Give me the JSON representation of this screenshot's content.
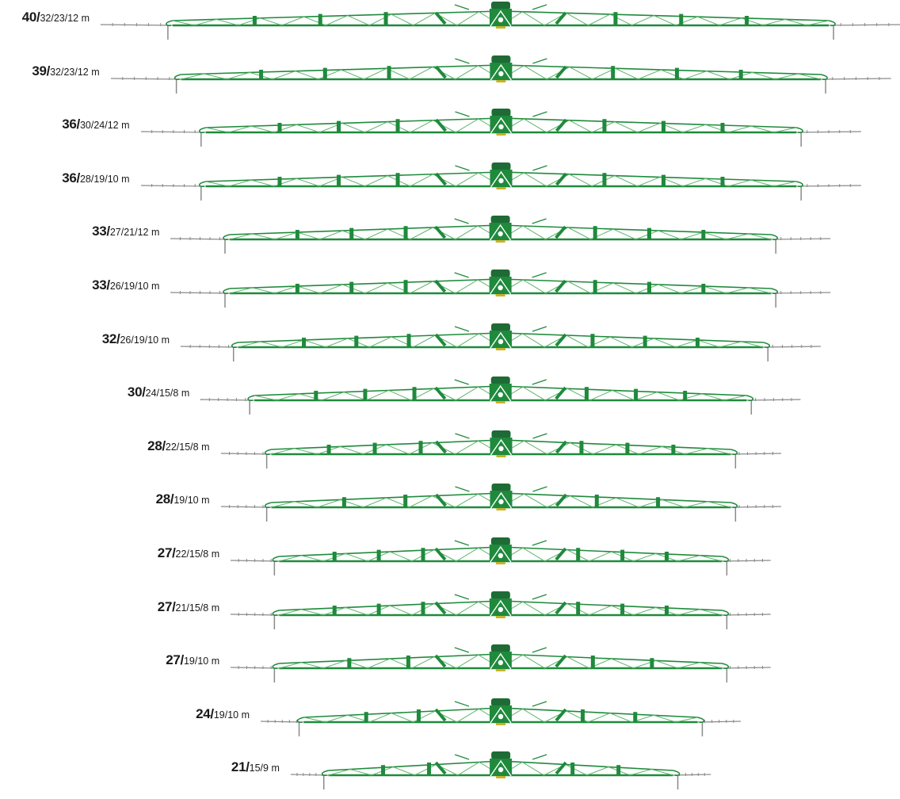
{
  "colors": {
    "boom_green": "#1f8a3c",
    "boom_light_green": "#5cb56a",
    "center_dark_green": "#1e6b35",
    "tip_grey": "#8a8a8a",
    "label_text": "#1a1a1a"
  },
  "booms": [
    {
      "main": "40/",
      "sub": "32/23/12 m",
      "sections": 3
    },
    {
      "main": "39/",
      "sub": "32/23/12 m",
      "sections": 3
    },
    {
      "main": "36/",
      "sub": "30/24/12 m",
      "sections": 3
    },
    {
      "main": "36/",
      "sub": "28/19/10 m",
      "sections": 3
    },
    {
      "main": "33/",
      "sub": "27/21/12 m",
      "sections": 3
    },
    {
      "main": "33/",
      "sub": "26/19/10 m",
      "sections": 3
    },
    {
      "main": "32/",
      "sub": "26/19/10 m",
      "sections": 3
    },
    {
      "main": "30/",
      "sub": "24/15/8 m",
      "sections": 3
    },
    {
      "main": "28/",
      "sub": "22/15/8 m",
      "sections": 3
    },
    {
      "main": "28/",
      "sub": "19/10 m",
      "sections": 2
    },
    {
      "main": "27/",
      "sub": "22/15/8 m",
      "sections": 3
    },
    {
      "main": "27/",
      "sub": "21/15/8 m",
      "sections": 3
    },
    {
      "main": "27/",
      "sub": "19/10 m",
      "sections": 2
    },
    {
      "main": "24/",
      "sub": "19/10 m",
      "sections": 2
    },
    {
      "main": "21/",
      "sub": "15/9 m",
      "sections": 2
    }
  ]
}
